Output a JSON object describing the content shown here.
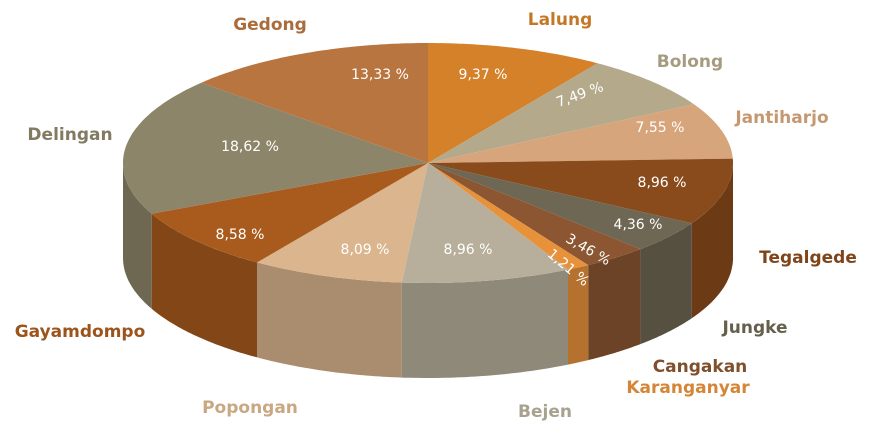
{
  "chart_data": {
    "type": "pie3d",
    "categories": [
      "Lalung",
      "Bolong",
      "Jantiharjo",
      "Tegalgede",
      "Jungke",
      "Cangakan",
      "Karanganyar",
      "Bejen",
      "Popongan",
      "Gayamdompo",
      "Delingan",
      "Gedong"
    ],
    "values": [
      9.37,
      7.49,
      7.55,
      8.96,
      4.36,
      3.46,
      1.21,
      8.96,
      8.09,
      8.58,
      18.62,
      13.33
    ],
    "value_labels": [
      "9,37 %",
      "7,49 %",
      "7,55 %",
      "8,96 %",
      "4,36 %",
      "3,46 %",
      "1,21 %",
      "8,96 %",
      "8,09 %",
      "8,58 %",
      "18,62 %",
      "13,33 %"
    ],
    "colors": [
      "#d4812a",
      "#b4a98a",
      "#d7a57b",
      "#8a4b1c",
      "#6e6753",
      "#8b5631",
      "#e8913b",
      "#b7af9b",
      "#dab58d",
      "#a85b1d",
      "#8d8569",
      "#b9753f"
    ]
  }
}
